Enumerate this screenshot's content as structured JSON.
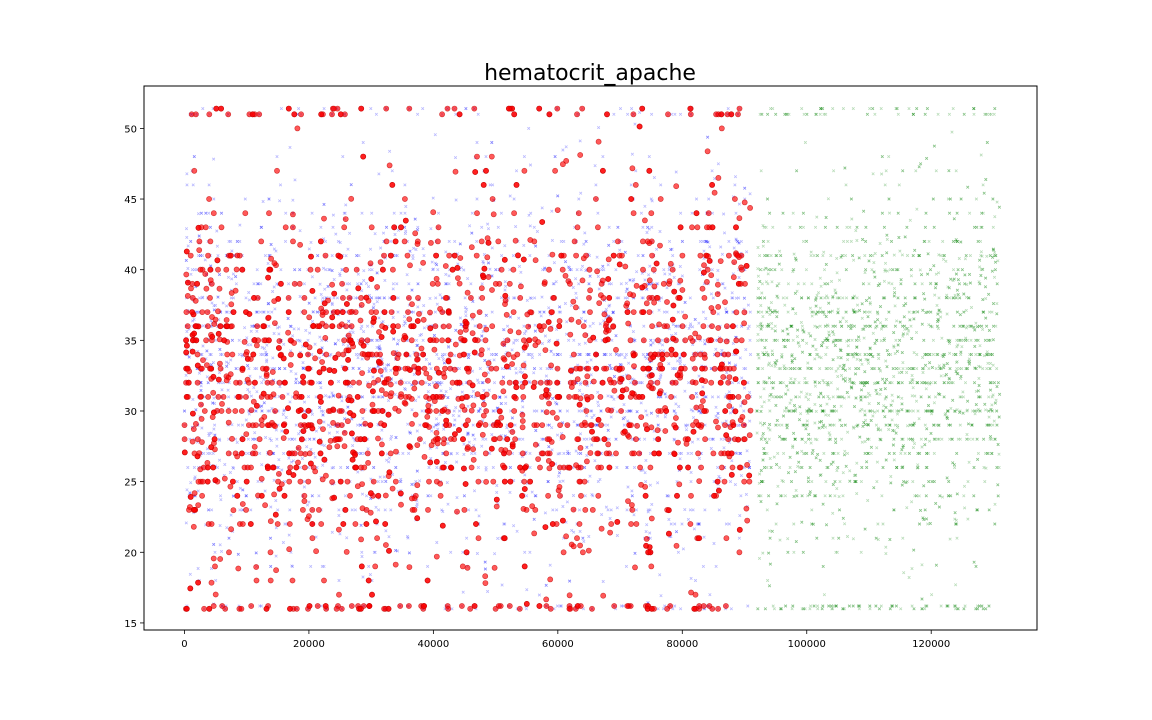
{
  "chart_data": {
    "type": "scatter",
    "title": "hematocrit_apache",
    "xlabel": "",
    "ylabel": "",
    "xlim": [
      -6500,
      137000
    ],
    "ylim": [
      14.5,
      53
    ],
    "x_ticks": [
      0,
      20000,
      40000,
      60000,
      80000,
      100000,
      120000
    ],
    "x_tick_labels": [
      "0",
      "20000",
      "40000",
      "60000",
      "80000",
      "100000",
      "120000"
    ],
    "y_ticks": [
      15,
      20,
      25,
      30,
      35,
      40,
      45,
      50
    ],
    "y_tick_labels": [
      "15",
      "20",
      "25",
      "30",
      "35",
      "40",
      "45",
      "50"
    ],
    "grid": false,
    "colors": {
      "series_a": "#0000ff",
      "series_b": "#ff0000",
      "series_c": "#008000"
    },
    "series": [
      {
        "color": "#0000ff",
        "marker": "small-x",
        "x_range": [
          0,
          91000
        ],
        "y_range": [
          16.2,
          51.4
        ],
        "y_center": 33,
        "y_spread": 6.5,
        "point_count": 3200
      },
      {
        "color": "#ff0000",
        "marker": "large-circle",
        "x_range": [
          0,
          91000
        ],
        "y_range": [
          16.2,
          51.4
        ],
        "y_center": 32,
        "y_spread": 6.5,
        "point_count": 2200
      },
      {
        "color": "#008000",
        "marker": "small-x",
        "x_range": [
          92000,
          131000
        ],
        "y_range": [
          16.2,
          51.4
        ],
        "y_center": 33,
        "y_spread": 6.0,
        "point_count": 2600
      }
    ]
  }
}
